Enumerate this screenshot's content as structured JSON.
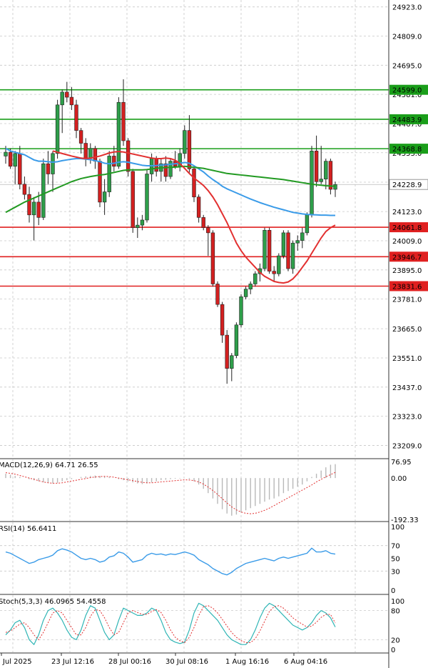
{
  "chart_data": {
    "type": "candlestick",
    "price_axis": {
      "ticks": [
        "24923.0",
        "24809.0",
        "24695.0",
        "24581.0",
        "24467.0",
        "24353.0",
        "24238.0",
        "24123.0",
        "24009.0",
        "23895.0",
        "23781.0",
        "23665.0",
        "23551.0",
        "23437.0",
        "23323.0",
        "23209.0"
      ],
      "tick_values": [
        24923.0,
        24809.0,
        24695.0,
        24581.0,
        24467.0,
        24353.0,
        24238.0,
        24123.0,
        24009.0,
        23895.0,
        23781.0,
        23665.0,
        23551.0,
        23437.0,
        23323.0,
        23209.0
      ],
      "range": [
        23160,
        24950
      ],
      "current_price": "24228.9"
    },
    "time_axis": {
      "labels": [
        "17 Jul 2025",
        "23 Jul 12:16",
        "28 Jul 00:16",
        "30 Jul 08:16",
        "1 Aug 16:16",
        "6 Aug 04:16"
      ]
    },
    "levels": [
      {
        "label": "24599.0",
        "value": 24599.0,
        "color": "#1a9e1a"
      },
      {
        "label": "24483.9",
        "value": 24483.9,
        "color": "#1a9e1a"
      },
      {
        "label": "24368.8",
        "value": 24368.8,
        "color": "#1a9e1a"
      },
      {
        "label": "24061.8",
        "value": 24061.8,
        "color": "#e02020"
      },
      {
        "label": "23946.7",
        "value": 23946.7,
        "color": "#e02020"
      },
      {
        "label": "23831.6",
        "value": 23831.6,
        "color": "#e02020"
      }
    ],
    "candles": [
      [
        24340,
        24380,
        24310,
        24355
      ],
      [
        24355,
        24370,
        24290,
        24300
      ],
      [
        24300,
        24360,
        24230,
        24350
      ],
      [
        24350,
        24380,
        24210,
        24230
      ],
      [
        24230,
        24260,
        24170,
        24190
      ],
      [
        24190,
        24220,
        24080,
        24110
      ],
      [
        24110,
        24180,
        24010,
        24160
      ],
      [
        24160,
        24200,
        24070,
        24100
      ],
      [
        24100,
        24330,
        24090,
        24310
      ],
      [
        24310,
        24360,
        24230,
        24270
      ],
      [
        24270,
        24360,
        24200,
        24350
      ],
      [
        24350,
        24560,
        24330,
        24540
      ],
      [
        24540,
        24600,
        24430,
        24590
      ],
      [
        24590,
        24630,
        24550,
        24570
      ],
      [
        24570,
        24610,
        24520,
        24540
      ],
      [
        24540,
        24560,
        24410,
        24440
      ],
      [
        24440,
        24450,
        24350,
        24390
      ],
      [
        24390,
        24410,
        24300,
        24330
      ],
      [
        24330,
        24390,
        24310,
        24370
      ],
      [
        24370,
        24380,
        24290,
        24320
      ],
      [
        24320,
        24330,
        24140,
        24160
      ],
      [
        24160,
        24250,
        24110,
        24200
      ],
      [
        24200,
        24360,
        24180,
        24340
      ],
      [
        24340,
        24380,
        24280,
        24300
      ],
      [
        24300,
        24570,
        24290,
        24550
      ],
      [
        24550,
        24640,
        24380,
        24400
      ],
      [
        24400,
        24410,
        24260,
        24280
      ],
      [
        24280,
        24290,
        24040,
        24060
      ],
      [
        24060,
        24100,
        24020,
        24070
      ],
      [
        24070,
        24110,
        24050,
        24090
      ],
      [
        24090,
        24290,
        24080,
        24270
      ],
      [
        24270,
        24350,
        24240,
        24330
      ],
      [
        24330,
        24340,
        24260,
        24280
      ],
      [
        24280,
        24330,
        24240,
        24310
      ],
      [
        24310,
        24340,
        24240,
        24260
      ],
      [
        24260,
        24330,
        24250,
        24320
      ],
      [
        24320,
        24360,
        24290,
        24300
      ],
      [
        24300,
        24370,
        24280,
        24350
      ],
      [
        24350,
        24460,
        24330,
        24440
      ],
      [
        24440,
        24500,
        24270,
        24290
      ],
      [
        24290,
        24300,
        24160,
        24180
      ],
      [
        24180,
        24190,
        24080,
        24100
      ],
      [
        24100,
        24110,
        24050,
        24060
      ],
      [
        24060,
        24070,
        23950,
        24040
      ],
      [
        24040,
        24050,
        23830,
        23840
      ],
      [
        23840,
        23850,
        23750,
        23760
      ],
      [
        23760,
        23770,
        23610,
        23640
      ],
      [
        23640,
        23660,
        23450,
        23510
      ],
      [
        23510,
        23570,
        23460,
        23560
      ],
      [
        23560,
        23690,
        23550,
        23680
      ],
      [
        23680,
        23800,
        23670,
        23790
      ],
      [
        23790,
        23830,
        23780,
        23820
      ],
      [
        23820,
        23850,
        23800,
        23840
      ],
      [
        23840,
        23890,
        23830,
        23880
      ],
      [
        23880,
        23920,
        23850,
        23900
      ],
      [
        23900,
        24060,
        23890,
        24050
      ],
      [
        24050,
        24060,
        23880,
        23890
      ],
      [
        23890,
        23910,
        23850,
        23880
      ],
      [
        23880,
        23960,
        23870,
        23950
      ],
      [
        23950,
        24050,
        23940,
        24040
      ],
      [
        24040,
        24050,
        23890,
        23900
      ],
      [
        23900,
        24010,
        23880,
        24000
      ],
      [
        24000,
        24030,
        23970,
        24010
      ],
      [
        24010,
        24060,
        23980,
        24040
      ],
      [
        24040,
        24120,
        24030,
        24110
      ],
      [
        24110,
        24380,
        24100,
        24360
      ],
      [
        24360,
        24420,
        24220,
        24240
      ],
      [
        24240,
        24380,
        24230,
        24250
      ],
      [
        24250,
        24330,
        24210,
        24320
      ],
      [
        24320,
        24330,
        24190,
        24210
      ],
      [
        24210,
        24240,
        24180,
        24228.9
      ]
    ],
    "ma_blue": [
      24370,
      24360,
      24355,
      24350,
      24345,
      24335,
      24325,
      24320,
      24320,
      24318,
      24316,
      24318,
      24322,
      24325,
      24328,
      24330,
      24330,
      24328,
      24326,
      24322,
      24318,
      24312,
      24310,
      24312,
      24316,
      24318,
      24316,
      24312,
      24308,
      24304,
      24302,
      24302,
      24303,
      24305,
      24306,
      24308,
      24310,
      24312,
      24315,
      24312,
      24302,
      24290,
      24278,
      24262,
      24248,
      24236,
      24222,
      24212,
      24204,
      24196,
      24188,
      24180,
      24172,
      24165,
      24158,
      24152,
      24146,
      24140,
      24135,
      24130,
      24125,
      24120,
      24117,
      24114,
      24112,
      24111,
      24110,
      24109,
      24109,
      24108,
      24108
    ],
    "ma_green": [
      24120,
      24130,
      24140,
      24150,
      24160,
      24168,
      24176,
      24184,
      24192,
      24200,
      24208,
      24216,
      24224,
      24232,
      24240,
      24246,
      24252,
      24256,
      24260,
      24263,
      24266,
      24268,
      24272,
      24276,
      24280,
      24284,
      24286,
      24286,
      24286,
      24286,
      24287,
      24290,
      24292,
      24294,
      24295,
      24296,
      24297,
      24298,
      24300,
      24298,
      24296,
      24294,
      24292,
      24288,
      24284,
      24280,
      24276,
      24272,
      24270,
      24268,
      24266,
      24264,
      24262,
      24260,
      24258,
      24256,
      24254,
      24252,
      24250,
      24248,
      24245,
      24242,
      24239,
      24236,
      24233,
      24230,
      24228,
      24226,
      24224,
      24223,
      24222
    ],
    "ma_red": [
      24360,
      24355,
      24350,
      24345,
      24340,
      24336,
      24332,
      24330,
      24332,
      24336,
      24340,
      24346,
      24352,
      24356,
      24358,
      24356,
      24352,
      24348,
      24344,
      24340,
      24336,
      24332,
      24330,
      24330,
      24332,
      24330,
      24324,
      24310,
      24292,
      24272,
      24254,
      24240,
      24225,
      24205,
      24180,
      24150,
      24115,
      24080,
      24040,
      24000,
      23970,
      23945,
      23925,
      23905,
      23885,
      23870,
      23860,
      23850,
      23846,
      23844,
      23848,
      23860,
      23880,
      23905,
      23930,
      23960,
      23990,
      24020,
      24045,
      24060,
      24070
    ],
    "macd": {
      "label": "MACD(12,26,9) 64.71 26.55",
      "axis_labels": [
        "76.95",
        "0.00",
        "-192.33"
      ],
      "range": [
        -192.33,
        76.95
      ],
      "hist": [
        20,
        15,
        10,
        5,
        0,
        -5,
        -10,
        -15,
        -20,
        -22,
        -25,
        -22,
        -15,
        -10,
        -5,
        0,
        5,
        8,
        10,
        12,
        10,
        8,
        5,
        0,
        -5,
        -10,
        -15,
        -20,
        -25,
        -28,
        -25,
        -20,
        -15,
        -10,
        -8,
        -5,
        -3,
        -2,
        0,
        -5,
        -15,
        -30,
        -50,
        -70,
        -95,
        -120,
        -145,
        -165,
        -175,
        -170,
        -160,
        -150,
        -140,
        -130,
        -120,
        -110,
        -100,
        -95,
        -85,
        -70,
        -60,
        -50,
        -40,
        -30,
        -15,
        5,
        20,
        35,
        50,
        62,
        64.71
      ],
      "signal": [
        25,
        22,
        18,
        12,
        6,
        0,
        -6,
        -12,
        -18,
        -22,
        -24,
        -24,
        -22,
        -18,
        -14,
        -10,
        -6,
        -2,
        2,
        5,
        7,
        8,
        7,
        4,
        0,
        -4,
        -8,
        -12,
        -16,
        -20,
        -22,
        -22,
        -20,
        -18,
        -16,
        -14,
        -12,
        -10,
        -8,
        -9,
        -12,
        -18,
        -28,
        -42,
        -58,
        -76,
        -96,
        -116,
        -134,
        -148,
        -158,
        -164,
        -166,
        -164,
        -158,
        -150,
        -140,
        -128,
        -116,
        -104,
        -92,
        -80,
        -68,
        -56,
        -44,
        -32,
        -18,
        -6,
        6,
        16,
        26.55
      ]
    },
    "rsi": {
      "label": "RSI(14) 56.6411",
      "axis_labels": [
        "100",
        "70",
        "50",
        "30",
        "0"
      ],
      "values": [
        60,
        58,
        54,
        50,
        46,
        42,
        44,
        48,
        50,
        52,
        55,
        62,
        65,
        63,
        60,
        55,
        50,
        48,
        50,
        48,
        44,
        46,
        52,
        54,
        60,
        58,
        52,
        44,
        46,
        48,
        55,
        58,
        56,
        57,
        55,
        57,
        56,
        58,
        60,
        58,
        55,
        48,
        44,
        40,
        34,
        30,
        26,
        24,
        28,
        34,
        38,
        42,
        44,
        46,
        48,
        50,
        48,
        46,
        50,
        52,
        50,
        52,
        54,
        56,
        58,
        66,
        60,
        60,
        62,
        58,
        56.6411
      ]
    },
    "stoch": {
      "label": "Stoch(5,3,3) 46.0965 54.4558",
      "axis_labels": [
        "100",
        "80",
        "20",
        "0"
      ],
      "k": [
        30,
        40,
        55,
        60,
        45,
        20,
        10,
        30,
        60,
        80,
        85,
        75,
        60,
        40,
        25,
        20,
        40,
        70,
        90,
        85,
        60,
        35,
        20,
        30,
        60,
        85,
        80,
        75,
        70,
        70,
        75,
        85,
        80,
        60,
        35,
        20,
        15,
        12,
        15,
        40,
        75,
        95,
        90,
        80,
        70,
        60,
        45,
        30,
        20,
        15,
        10,
        10,
        20,
        40,
        65,
        85,
        95,
        90,
        80,
        70,
        60,
        50,
        45,
        40,
        45,
        55,
        70,
        80,
        75,
        65,
        46.0965
      ],
      "d": [
        35,
        38,
        45,
        52,
        55,
        45,
        30,
        20,
        35,
        55,
        75,
        80,
        75,
        60,
        45,
        30,
        30,
        45,
        68,
        82,
        80,
        65,
        45,
        30,
        35,
        55,
        75,
        80,
        76,
        72,
        72,
        78,
        82,
        76,
        60,
        40,
        25,
        18,
        14,
        25,
        45,
        70,
        88,
        90,
        85,
        75,
        62,
        48,
        35,
        25,
        18,
        14,
        14,
        22,
        38,
        58,
        78,
        88,
        90,
        85,
        75,
        65,
        58,
        52,
        46,
        48,
        56,
        66,
        72,
        72,
        54.4558
      ]
    }
  }
}
